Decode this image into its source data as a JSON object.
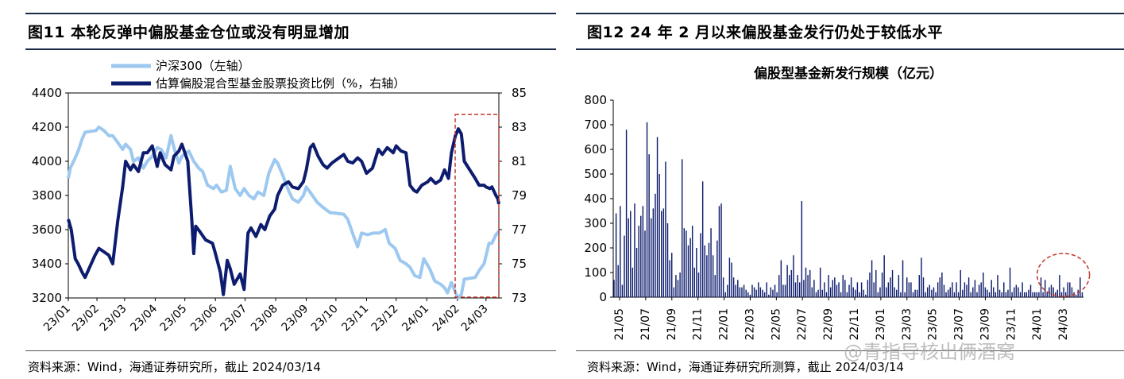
{
  "left_panel": {
    "title": "图11 本轮反弹中偏股基金仓位或没有明显增加",
    "source": "资料来源：Wind，海通证券研究所，截止 2024/03/14"
  },
  "right_panel": {
    "title": "图12 24 年 2 月以来偏股基金发行仍处于较低水平",
    "source": "资料来源：Wind，海通证券研究所测算，截止 2024/03/14"
  },
  "watermark": "@青指导核出俩酒窝",
  "colors": {
    "csi300": "#9dc8f0",
    "ratio": "#0d1c6e",
    "bars": "#0d1c6e",
    "highlight": "#c0392b",
    "rule": "#1b2a4a"
  },
  "chart_data": [
    {
      "type": "line",
      "legend_position": "top",
      "x_ticks": [
        "23/01",
        "23/02",
        "23/03",
        "23/04",
        "23/05",
        "23/06",
        "23/07",
        "23/08",
        "23/09",
        "23/10",
        "23/11",
        "23/12",
        "24/01",
        "24/02",
        "24/03"
      ],
      "y_left": {
        "min": 3200,
        "max": 4400,
        "ticks": [
          3200,
          3400,
          3600,
          3800,
          4000,
          4200,
          4400
        ]
      },
      "y_right": {
        "min": 73,
        "max": 85,
        "ticks": [
          73,
          75,
          77,
          79,
          81,
          83,
          85
        ]
      },
      "series": [
        {
          "name": "沪深300（左轴）",
          "axis": "left",
          "points": [
            [
              "23/01/03",
              3900
            ],
            [
              "23/01/05",
              3960
            ],
            [
              "23/01/10",
              4020
            ],
            [
              "23/01/13",
              4060
            ],
            [
              "23/01/17",
              4130
            ],
            [
              "23/01/20",
              4170
            ],
            [
              "23/01/31",
              4180
            ],
            [
              "23/02/03",
              4200
            ],
            [
              "23/02/08",
              4180
            ],
            [
              "23/02/13",
              4150
            ],
            [
              "23/02/17",
              4150
            ],
            [
              "23/02/22",
              4110
            ],
            [
              "23/02/27",
              4070
            ],
            [
              "23/03/02",
              4100
            ],
            [
              "23/03/07",
              4070
            ],
            [
              "23/03/10",
              4000
            ],
            [
              "23/03/15",
              4020
            ],
            [
              "23/03/20",
              3960
            ],
            [
              "23/03/24",
              4000
            ],
            [
              "23/03/29",
              4030
            ],
            [
              "23/04/03",
              4080
            ],
            [
              "23/04/07",
              4070
            ],
            [
              "23/04/12",
              4020
            ],
            [
              "23/04/17",
              4150
            ],
            [
              "23/04/20",
              4080
            ],
            [
              "23/04/25",
              3990
            ],
            [
              "23/04/28",
              4030
            ],
            [
              "23/05/05",
              4060
            ],
            [
              "23/05/10",
              4000
            ],
            [
              "23/05/15",
              3960
            ],
            [
              "23/05/19",
              3940
            ],
            [
              "23/05/24",
              3860
            ],
            [
              "23/05/30",
              3840
            ],
            [
              "23/06/02",
              3860
            ],
            [
              "23/06/07",
              3820
            ],
            [
              "23/06/12",
              3830
            ],
            [
              "23/06/16",
              3970
            ],
            [
              "23/06/21",
              3840
            ],
            [
              "23/06/26",
              3800
            ],
            [
              "23/06/30",
              3840
            ],
            [
              "23/07/05",
              3800
            ],
            [
              "23/07/10",
              3780
            ],
            [
              "23/07/14",
              3820
            ],
            [
              "23/07/20",
              3800
            ],
            [
              "23/07/25",
              3930
            ],
            [
              "23/07/31",
              4010
            ],
            [
              "23/08/03",
              3990
            ],
            [
              "23/08/08",
              3920
            ],
            [
              "23/08/14",
              3830
            ],
            [
              "23/08/18",
              3780
            ],
            [
              "23/08/24",
              3760
            ],
            [
              "23/08/29",
              3800
            ],
            [
              "23/09/01",
              3850
            ],
            [
              "23/09/06",
              3810
            ],
            [
              "23/09/12",
              3760
            ],
            [
              "23/09/18",
              3730
            ],
            [
              "23/09/25",
              3700
            ],
            [
              "23/10/09",
              3690
            ],
            [
              "23/10/13",
              3660
            ],
            [
              "23/10/19",
              3560
            ],
            [
              "23/10/23",
              3500
            ],
            [
              "23/10/27",
              3580
            ],
            [
              "23/11/02",
              3570
            ],
            [
              "23/11/08",
              3580
            ],
            [
              "23/11/14",
              3580
            ],
            [
              "23/11/20",
              3600
            ],
            [
              "23/11/24",
              3520
            ],
            [
              "23/11/30",
              3490
            ],
            [
              "23/12/05",
              3420
            ],
            [
              "23/12/11",
              3400
            ],
            [
              "23/12/15",
              3380
            ],
            [
              "23/12/20",
              3330
            ],
            [
              "23/12/25",
              3320
            ],
            [
              "23/12/29",
              3430
            ],
            [
              "24/01/04",
              3370
            ],
            [
              "24/01/09",
              3300
            ],
            [
              "24/01/15",
              3280
            ],
            [
              "24/01/19",
              3260
            ],
            [
              "24/01/22",
              3230
            ],
            [
              "24/01/26",
              3290
            ],
            [
              "24/01/31",
              3220
            ],
            [
              "24/02/02",
              3200
            ],
            [
              "24/02/05",
              3220
            ],
            [
              "24/02/08",
              3310
            ],
            [
              "24/02/19",
              3320
            ],
            [
              "24/02/23",
              3360
            ],
            [
              "24/02/28",
              3400
            ],
            [
              "24/03/04",
              3520
            ],
            [
              "24/03/07",
              3520
            ],
            [
              "24/03/11",
              3570
            ],
            [
              "24/03/14",
              3590
            ]
          ]
        },
        {
          "name": "估算偏股混合型基金股票投资比例（%，右轴）",
          "axis": "right",
          "points": [
            [
              "23/01/03",
              77.6
            ],
            [
              "23/01/06",
              77.0
            ],
            [
              "23/01/10",
              75.3
            ],
            [
              "23/01/13",
              75.0
            ],
            [
              "23/01/17",
              74.5
            ],
            [
              "23/01/20",
              74.2
            ],
            [
              "23/01/30",
              75.5
            ],
            [
              "23/02/03",
              75.9
            ],
            [
              "23/02/08",
              75.7
            ],
            [
              "23/02/13",
              75.5
            ],
            [
              "23/02/17",
              75.0
            ],
            [
              "23/02/22",
              77.5
            ],
            [
              "23/02/27",
              79.5
            ],
            [
              "23/03/02",
              81.0
            ],
            [
              "23/03/07",
              80.5
            ],
            [
              "23/03/10",
              80.8
            ],
            [
              "23/03/15",
              80.4
            ],
            [
              "23/03/20",
              81.5
            ],
            [
              "23/03/24",
              81.5
            ],
            [
              "23/03/29",
              81.9
            ],
            [
              "23/04/03",
              80.7
            ],
            [
              "23/04/06",
              81.5
            ],
            [
              "23/04/11",
              80.8
            ],
            [
              "23/04/17",
              80.5
            ],
            [
              "23/04/20",
              81.3
            ],
            [
              "23/04/25",
              81.6
            ],
            [
              "23/04/28",
              82.0
            ],
            [
              "23/05/04",
              81.0
            ],
            [
              "23/05/08",
              77.6
            ],
            [
              "23/05/10",
              75.6
            ],
            [
              "23/05/12",
              77.2
            ],
            [
              "23/05/16",
              76.9
            ],
            [
              "23/05/22",
              76.4
            ],
            [
              "23/05/29",
              76.2
            ],
            [
              "23/06/01",
              75.6
            ],
            [
              "23/06/06",
              74.5
            ],
            [
              "23/06/09",
              73.2
            ],
            [
              "23/06/13",
              75.2
            ],
            [
              "23/06/16",
              74.7
            ],
            [
              "23/06/20",
              73.8
            ],
            [
              "23/06/26",
              74.4
            ],
            [
              "23/06/30",
              73.5
            ],
            [
              "23/07/04",
              76.8
            ],
            [
              "23/07/07",
              77.1
            ],
            [
              "23/07/12",
              76.6
            ],
            [
              "23/07/17",
              77.3
            ],
            [
              "23/07/21",
              77.0
            ],
            [
              "23/07/26",
              77.8
            ],
            [
              "23/07/31",
              78.2
            ],
            [
              "23/08/03",
              79.0
            ],
            [
              "23/08/08",
              79.6
            ],
            [
              "23/08/14",
              79.8
            ],
            [
              "23/08/18",
              79.5
            ],
            [
              "23/08/24",
              79.4
            ],
            [
              "23/08/29",
              79.8
            ],
            [
              "23/09/01",
              80.5
            ],
            [
              "23/09/05",
              81.8
            ],
            [
              "23/09/08",
              82.0
            ],
            [
              "23/09/13",
              81.3
            ],
            [
              "23/09/18",
              80.8
            ],
            [
              "23/09/22",
              80.6
            ],
            [
              "23/09/27",
              80.9
            ],
            [
              "23/10/09",
              81.4
            ],
            [
              "23/10/13",
              81.0
            ],
            [
              "23/10/18",
              80.9
            ],
            [
              "23/10/23",
              81.2
            ],
            [
              "23/10/27",
              81.0
            ],
            [
              "23/11/01",
              80.3
            ],
            [
              "23/11/07",
              80.6
            ],
            [
              "23/11/13",
              81.7
            ],
            [
              "23/11/17",
              81.4
            ],
            [
              "23/11/22",
              81.8
            ],
            [
              "23/11/28",
              81.5
            ],
            [
              "23/12/01",
              81.9
            ],
            [
              "23/12/06",
              81.6
            ],
            [
              "23/12/11",
              81.5
            ],
            [
              "23/12/15",
              79.6
            ],
            [
              "23/12/19",
              79.3
            ],
            [
              "23/12/22",
              79.2
            ],
            [
              "23/12/27",
              79.6
            ],
            [
              "24/01/02",
              79.8
            ],
            [
              "24/01/05",
              80.0
            ],
            [
              "24/01/10",
              79.7
            ],
            [
              "24/01/15",
              79.9
            ],
            [
              "24/01/19",
              80.5
            ],
            [
              "24/01/23",
              80.0
            ],
            [
              "24/01/26",
              81.5
            ],
            [
              "24/01/30",
              82.5
            ],
            [
              "24/02/02",
              82.9
            ],
            [
              "24/02/05",
              82.6
            ],
            [
              "24/02/08",
              81.0
            ],
            [
              "24/02/19",
              80.0
            ],
            [
              "24/02/23",
              79.6
            ],
            [
              "24/02/28",
              79.6
            ],
            [
              "24/03/01",
              79.5
            ],
            [
              "24/03/05",
              79.4
            ],
            [
              "24/03/07",
              79.5
            ],
            [
              "24/03/11",
              79.0
            ],
            [
              "24/03/13",
              78.8
            ],
            [
              "24/03/14",
              78.5
            ]
          ]
        }
      ]
    },
    {
      "type": "bar",
      "title": "偏股型基金新发行规模（亿元）",
      "x_ticks": [
        "21/05",
        "21/07",
        "21/09",
        "21/11",
        "22/01",
        "22/03",
        "22/05",
        "22/07",
        "22/09",
        "22/11",
        "23/01",
        "23/03",
        "23/05",
        "23/07",
        "23/09",
        "23/11",
        "24/01",
        "24/03"
      ],
      "ylim": [
        0,
        800
      ],
      "y_ticks": [
        0,
        100,
        200,
        300,
        400,
        500,
        600,
        700,
        800
      ],
      "values": [
        70,
        340,
        130,
        370,
        50,
        250,
        680,
        320,
        350,
        120,
        380,
        200,
        290,
        330,
        370,
        270,
        710,
        580,
        320,
        360,
        420,
        650,
        500,
        350,
        360,
        550,
        300,
        150,
        180,
        40,
        90,
        70,
        100,
        560,
        280,
        270,
        210,
        240,
        290,
        120,
        200,
        100,
        260,
        470,
        210,
        170,
        220,
        280,
        170,
        90,
        230,
        370,
        380,
        80,
        20,
        50,
        160,
        140,
        80,
        50,
        70,
        40,
        40,
        50,
        30,
        20,
        10,
        50,
        40,
        30,
        60,
        40,
        30,
        20,
        60,
        10,
        40,
        30,
        50,
        20,
        90,
        150,
        50,
        50,
        130,
        90,
        110,
        170,
        60,
        90,
        60,
        390,
        70,
        120,
        90,
        110,
        40,
        70,
        20,
        30,
        120,
        30,
        60,
        20,
        90,
        40,
        70,
        80,
        50,
        60,
        20,
        90,
        70,
        20,
        50,
        80,
        40,
        30,
        60,
        20,
        60,
        30,
        10,
        70,
        100,
        150,
        60,
        110,
        20,
        40,
        100,
        170,
        40,
        60,
        80,
        110,
        40,
        30,
        90,
        20,
        150,
        20,
        80,
        60,
        60,
        20,
        30,
        30,
        90,
        160,
        80,
        20,
        40,
        50,
        30,
        40,
        20,
        60,
        80,
        100,
        50,
        20,
        30,
        40,
        60,
        20,
        60,
        20,
        110,
        30,
        60,
        50,
        80,
        20,
        40,
        70,
        20,
        50,
        60,
        100,
        40,
        30,
        20,
        70,
        40,
        20,
        90,
        30,
        20,
        60,
        20,
        30,
        120,
        20,
        40,
        50,
        40,
        20,
        60,
        20,
        20,
        30,
        50,
        20,
        20,
        20,
        20,
        80,
        20,
        70,
        20,
        40,
        50,
        40,
        20,
        30,
        90,
        20,
        40,
        20,
        60,
        60,
        40,
        20,
        10,
        30,
        80,
        20
      ]
    }
  ]
}
